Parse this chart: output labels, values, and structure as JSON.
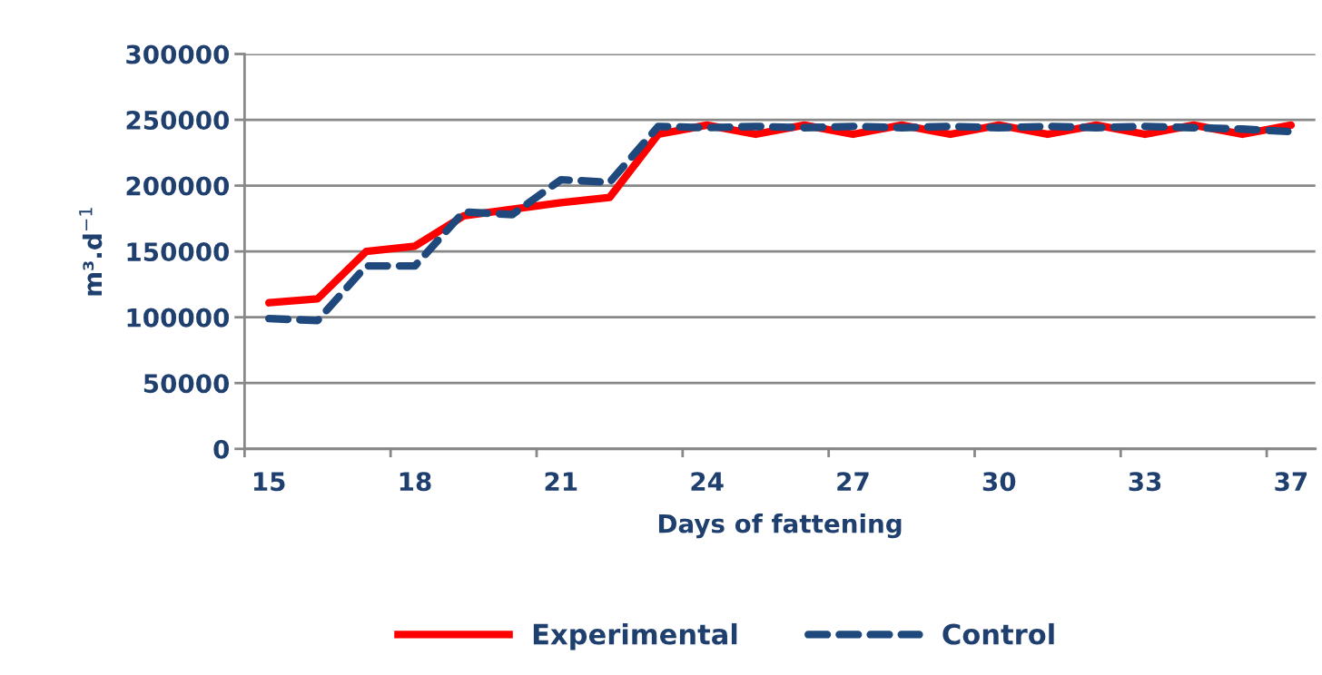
{
  "chart_data": {
    "type": "line",
    "xlabel": "Days of fattening",
    "ylabel": "m³.d$^{−1}$",
    "categories": [
      "15",
      null,
      null,
      "18",
      null,
      null,
      "21",
      null,
      null,
      "24",
      null,
      null,
      "27",
      null,
      null,
      "30",
      null,
      null,
      "33",
      null,
      null,
      "37"
    ],
    "series": [
      {
        "name": "Experimental",
        "color": "#ff0000",
        "line_style": "solid",
        "values": [
          111000,
          114000,
          150000,
          154000,
          177000,
          182000,
          187000,
          191000,
          239000,
          246000,
          239000,
          246000,
          239000,
          246000,
          239000,
          246000,
          239000,
          246000,
          239000,
          246000,
          239000,
          246000
        ]
      },
      {
        "name": "Control",
        "color": "#1f497d",
        "line_style": "dashed",
        "values": [
          99000,
          97500,
          139000,
          139000,
          180000,
          178000,
          204500,
          202500,
          245000,
          244000,
          245000,
          244000,
          245000,
          244000,
          245000,
          244000,
          245000,
          244000,
          245000,
          244000,
          243000,
          241000
        ]
      }
    ],
    "ylim": [
      0,
      300000
    ],
    "yticks": [
      0,
      50000,
      100000,
      150000,
      200000,
      250000,
      300000
    ],
    "grid": "y",
    "legend": "bottom",
    "marker": "none"
  }
}
